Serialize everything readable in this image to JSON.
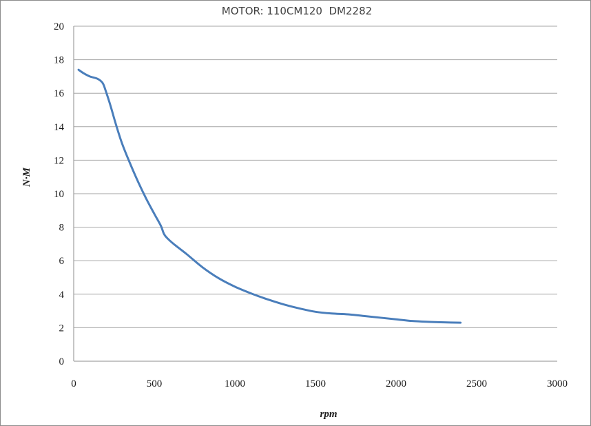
{
  "chart_data": {
    "type": "line",
    "title": "MOTOR: 110CM120  DM2282",
    "xlabel": "rpm",
    "ylabel": "N·M",
    "xlim": [
      0,
      3000
    ],
    "ylim": [
      0,
      20
    ],
    "xticks": [
      0,
      500,
      1000,
      1500,
      2000,
      2500,
      3000
    ],
    "yticks": [
      0,
      2,
      4,
      6,
      8,
      10,
      12,
      14,
      16,
      18,
      20
    ],
    "grid": "horizontal",
    "line_color": "#4a7ebb",
    "series": [
      {
        "x": [
          30,
          60,
          100,
          150,
          180,
          200,
          230,
          260,
          300,
          350,
          400,
          450,
          500,
          540,
          560,
          580,
          620,
          700,
          800,
          900,
          1000,
          1100,
          1200,
          1300,
          1400,
          1500,
          1600,
          1700,
          1800,
          1900,
          2000,
          2100,
          2200,
          2300,
          2400
        ],
        "y": [
          17.4,
          17.2,
          17.0,
          16.85,
          16.6,
          16.1,
          15.2,
          14.2,
          13.0,
          11.8,
          10.7,
          9.7,
          8.8,
          8.1,
          7.6,
          7.35,
          7.0,
          6.4,
          5.6,
          4.95,
          4.45,
          4.05,
          3.7,
          3.4,
          3.15,
          2.95,
          2.85,
          2.8,
          2.7,
          2.6,
          2.5,
          2.4,
          2.35,
          2.32,
          2.3
        ]
      }
    ]
  }
}
